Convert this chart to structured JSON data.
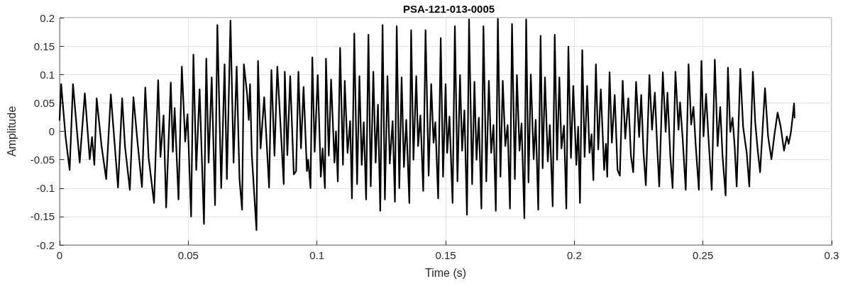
{
  "chart_data": {
    "type": "line",
    "title": "PSA-121-013-0005",
    "xlabel": "Time (s)",
    "ylabel": "Amplitude",
    "color": "#000000",
    "marker": "none",
    "line_style": "solid",
    "grid": true,
    "xlim": [
      0,
      0.3
    ],
    "xticks": [
      0,
      0.05,
      0.1,
      0.15,
      0.2,
      0.25,
      0.3
    ],
    "ylim": [
      -0.2,
      0.2
    ],
    "yticks": [
      -0.2,
      -0.15,
      -0.1,
      -0.05,
      0,
      0.05,
      0.1,
      0.15,
      0.2
    ],
    "x": [
      0,
      0.0006,
      0.0023,
      0.0039,
      0.0052,
      0.0078,
      0.0098,
      0.0117,
      0.0126,
      0.0135,
      0.0144,
      0.0163,
      0.0181,
      0.0199,
      0.0227,
      0.0243,
      0.0254,
      0.0273,
      0.0287,
      0.0303,
      0.032,
      0.0333,
      0.0346,
      0.0367,
      0.0383,
      0.0392,
      0.0404,
      0.0414,
      0.0432,
      0.044,
      0.0447,
      0.0462,
      0.0475,
      0.0488,
      0.0497,
      0.0511,
      0.052,
      0.0531,
      0.0544,
      0.0561,
      0.057,
      0.0579,
      0.0591,
      0.0604,
      0.0613,
      0.0628,
      0.0641,
      0.065,
      0.0664,
      0.0676,
      0.0688,
      0.0699,
      0.0709,
      0.0716,
      0.0729,
      0.0735,
      0.074,
      0.0747,
      0.0765,
      0.0771,
      0.0781,
      0.0795,
      0.0814,
      0.0823,
      0.0835,
      0.0846,
      0.0871,
      0.0875,
      0.0885,
      0.0896,
      0.091,
      0.0919,
      0.0928,
      0.0938,
      0.0948,
      0.0961,
      0.0966,
      0.0975,
      0.0982,
      0.0991,
      0.1003,
      0.1015,
      0.1022,
      0.1031,
      0.1035,
      0.1046,
      0.1055,
      0.1068,
      0.1074,
      0.1081,
      0.109,
      0.1101,
      0.1108,
      0.1119,
      0.1129,
      0.1136,
      0.1145,
      0.1156,
      0.1165,
      0.1174,
      0.1182,
      0.1191,
      0.12,
      0.1209,
      0.1219,
      0.1228,
      0.1237,
      0.1246,
      0.1255,
      0.1264,
      0.1274,
      0.1283,
      0.1294,
      0.1303,
      0.131,
      0.132,
      0.1329,
      0.1338,
      0.1347,
      0.1359,
      0.1366,
      0.1375,
      0.1386,
      0.1393,
      0.1402,
      0.1413,
      0.1422,
      0.1434,
      0.1444,
      0.1453,
      0.146,
      0.1471,
      0.1481,
      0.149,
      0.15,
      0.1506,
      0.1515,
      0.1527,
      0.1536,
      0.1546,
      0.1556,
      0.1564,
      0.1573,
      0.1583,
      0.1591,
      0.1603,
      0.1612,
      0.162,
      0.1629,
      0.1639,
      0.1647,
      0.1658,
      0.1668,
      0.1677,
      0.1686,
      0.1695,
      0.1703,
      0.1713,
      0.1722,
      0.1732,
      0.1741,
      0.175,
      0.1758,
      0.1769,
      0.1777,
      0.1787,
      0.1795,
      0.1806,
      0.1813,
      0.1822,
      0.1831,
      0.1842,
      0.185,
      0.186,
      0.1869,
      0.1877,
      0.1886,
      0.1897,
      0.1905,
      0.1916,
      0.1924,
      0.1933,
      0.1942,
      0.195,
      0.196,
      0.1969,
      0.1977,
      0.1987,
      0.1996,
      0.2008,
      0.2015,
      0.2022,
      0.2031,
      0.204,
      0.205,
      0.2059,
      0.2067,
      0.2074,
      0.2084,
      0.2093,
      0.2103,
      0.2116,
      0.2123,
      0.2128,
      0.2137,
      0.2146,
      0.2157,
      0.2168,
      0.2177,
      0.2188,
      0.2198,
      0.221,
      0.222,
      0.2229,
      0.224,
      0.2252,
      0.226,
      0.2269,
      0.2278,
      0.2292,
      0.2302,
      0.2313,
      0.2322,
      0.233,
      0.2344,
      0.2355,
      0.2362,
      0.2373,
      0.2382,
      0.2393,
      0.2405,
      0.2411,
      0.2421,
      0.2433,
      0.2444,
      0.2454,
      0.2463,
      0.2472,
      0.2484,
      0.2494,
      0.2502,
      0.2512,
      0.2521,
      0.2534,
      0.2546,
      0.2557,
      0.2567,
      0.2576,
      0.2588,
      0.2597,
      0.2606,
      0.2615,
      0.2623,
      0.2631,
      0.2645,
      0.2656,
      0.2665,
      0.267,
      0.268,
      0.2694,
      0.2703,
      0.2713,
      0.2722,
      0.2741,
      0.2753,
      0.2766,
      0.2778,
      0.279,
      0.2802,
      0.2815,
      0.2826,
      0.2833,
      0.2842,
      0.2854,
      0.2856
    ],
    "values": [
      0.02,
      0.083,
      -0.009,
      -0.068,
      0.083,
      -0.055,
      0.067,
      -0.049,
      -0.01,
      -0.059,
      0.058,
      -0.026,
      -0.084,
      0.065,
      -0.099,
      0.058,
      -0.026,
      -0.103,
      0.06,
      -0.02,
      -0.098,
      0.077,
      -0.047,
      -0.126,
      0.09,
      -0.045,
      0.028,
      -0.134,
      0.086,
      -0.036,
      0.041,
      -0.12,
      0.114,
      -0.018,
      0.03,
      -0.15,
      0.135,
      -0.068,
      0.074,
      -0.163,
      0.128,
      -0.055,
      0.095,
      -0.13,
      0.187,
      -0.1,
      0.118,
      -0.084,
      0.195,
      -0.055,
      0.114,
      -0.084,
      -0.138,
      0.118,
      0.064,
      0.02,
      0.083,
      -0.043,
      -0.174,
      0.124,
      -0.03,
      0.06,
      -0.099,
      0.108,
      -0.043,
      0.114,
      -0.093,
      0.105,
      -0.042,
      0.097,
      -0.076,
      -0.07,
      0.105,
      -0.03,
      0.078,
      -0.07,
      -0.05,
      -0.1,
      0.13,
      -0.036,
      0.099,
      -0.08,
      -0.03,
      -0.1,
      0.128,
      -0.043,
      0.091,
      -0.055,
      0,
      -0.088,
      0.147,
      -0.059,
      0.089,
      -0.038,
      0.018,
      -0.118,
      0.172,
      -0.093,
      0.097,
      -0.059,
      0.016,
      -0.12,
      0.17,
      -0.097,
      0.105,
      -0.055,
      0.047,
      -0.14,
      0.187,
      -0.12,
      0.097,
      -0.057,
      0.018,
      -0.124,
      0.185,
      -0.1,
      0.095,
      -0.063,
      0.02,
      -0.126,
      0.178,
      -0.05,
      0.097,
      -0.026,
      0.028,
      -0.105,
      0.178,
      -0.078,
      0.083,
      -0.02,
      0.016,
      -0.118,
      0.164,
      -0.08,
      0.083,
      -0.038,
      0.026,
      -0.126,
      0.185,
      -0.088,
      0.099,
      -0.034,
      0.037,
      -0.147,
      0.197,
      -0.093,
      0.087,
      -0.05,
      0.024,
      -0.136,
      0.185,
      -0.088,
      0.089,
      -0.038,
      0.011,
      -0.14,
      0.198,
      -0.08,
      0.089,
      -0.026,
      0.011,
      -0.136,
      0.189,
      -0.084,
      0.099,
      -0.034,
      0.014,
      -0.153,
      0.197,
      -0.09,
      0.1,
      -0.049,
      0.02,
      -0.138,
      0.168,
      -0.065,
      0.095,
      -0.053,
      0.011,
      -0.132,
      0.17,
      -0.05,
      0.095,
      -0.03,
      0.01,
      -0.136,
      0.149,
      -0.047,
      0.08,
      -0.059,
      0.008,
      -0.126,
      0.143,
      -0.045,
      0.08,
      -0.038,
      -0.005,
      -0.086,
      0.118,
      -0.032,
      0.074,
      -0.068,
      -0.022,
      -0.08,
      0.104,
      -0.02,
      0.064,
      -0.068,
      -0.078,
      0.089,
      -0.013,
      0.058,
      -0.043,
      -0.072,
      0.087,
      -0.01,
      0.064,
      -0.038,
      -0.095,
      0.099,
      0.003,
      0.068,
      -0.026,
      -0.097,
      0.104,
      -0.001,
      0.068,
      -0.043,
      -0.1,
      0.105,
      0.003,
      0.051,
      -0.013,
      -0.103,
      0.118,
      0.012,
      0.043,
      -0.026,
      -0.103,
      0.124,
      -0.009,
      0.066,
      -0.009,
      -0.103,
      0.126,
      -0.026,
      0.043,
      -0.043,
      -0.113,
      0.112,
      -0.001,
      0.024,
      -0.026,
      -0.097,
      0.11,
      0.008,
      -0.022,
      -0.038,
      -0.097,
      0.105,
      0.016,
      -0.034,
      -0.072,
      0.076,
      -0.009,
      -0.049,
      -0.005,
      0.033,
      0.008,
      -0.034,
      -0.009,
      -0.022,
      -0.001,
      0.049,
      0.024
    ]
  }
}
